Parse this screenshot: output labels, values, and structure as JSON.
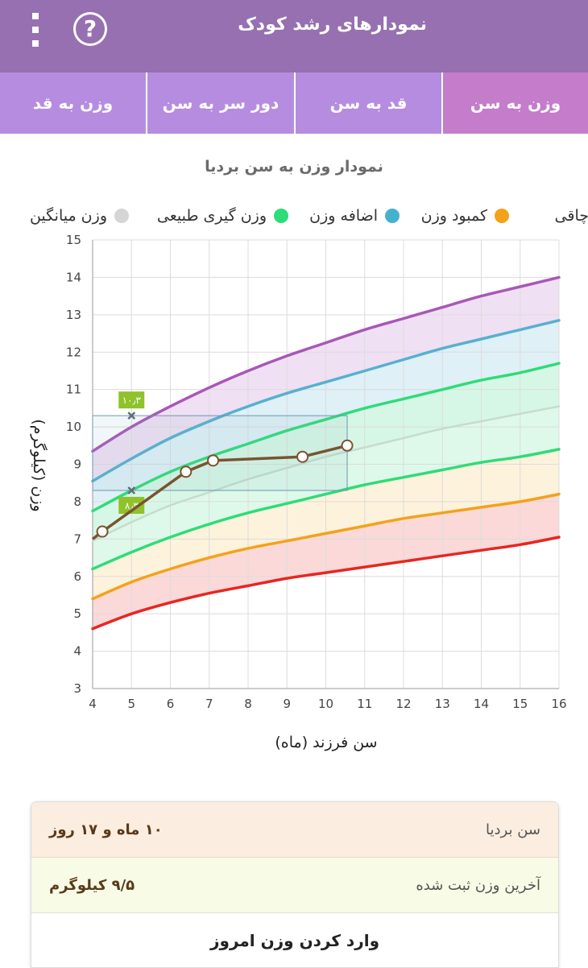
{
  "app_bar": {
    "title": "نمودارهای رشد کودک",
    "help_icon": "help-circle-icon",
    "menu_icon": "more-vert-icon"
  },
  "tabs": [
    {
      "label": "وزن به سن",
      "active": true
    },
    {
      "label": "قد به سن",
      "active": false
    },
    {
      "label": "دور سر به سن",
      "active": false
    },
    {
      "label": "وزن به قد",
      "active": false
    }
  ],
  "chart_data": {
    "type": "line",
    "title": "نمودار وزن به سن بردیا",
    "xlabel": "سن فرزند (ماه)",
    "ylabel": "وزن (کیلوگرم)",
    "xlim": [
      4,
      16
    ],
    "ylim": [
      3,
      15
    ],
    "x_ticks": [
      "4",
      "5",
      "6",
      "7",
      "8",
      "9",
      "10",
      "11",
      "12",
      "13",
      "14",
      "15",
      "16"
    ],
    "y_ticks": [
      "3",
      "4",
      "5",
      "6",
      "7",
      "8",
      "9",
      "10",
      "11",
      "12",
      "13",
      "14",
      "15"
    ],
    "grid": true,
    "legend_position": "top",
    "legend": [
      {
        "label": "چاقی",
        "color": "#a957b8"
      },
      {
        "label": "کمبود وزن",
        "color": "#f3a21a"
      },
      {
        "label": "اضافه وزن",
        "color": "#45b1cf"
      },
      {
        "label": "وزن گیری طبیعی",
        "color": "#2edc78"
      },
      {
        "label": "وزن میانگین",
        "color": "#d5d5d5"
      }
    ],
    "curves": [
      {
        "key": "obesity",
        "color": "#a957b8",
        "fill": "#f0e0f3",
        "points": [
          [
            4,
            9.35
          ],
          [
            5,
            10.0
          ],
          [
            6,
            10.55
          ],
          [
            7,
            11.05
          ],
          [
            8,
            11.5
          ],
          [
            9,
            11.9
          ],
          [
            10,
            12.25
          ],
          [
            11,
            12.6
          ],
          [
            12,
            12.9
          ],
          [
            13,
            13.2
          ],
          [
            14,
            13.5
          ],
          [
            15,
            13.75
          ],
          [
            16,
            14.0
          ]
        ]
      },
      {
        "key": "overweight",
        "color": "#57b0d0",
        "fill": "#dff0f6",
        "points": [
          [
            4,
            8.55
          ],
          [
            5,
            9.15
          ],
          [
            6,
            9.7
          ],
          [
            7,
            10.15
          ],
          [
            8,
            10.55
          ],
          [
            9,
            10.9
          ],
          [
            10,
            11.2
          ],
          [
            11,
            11.5
          ],
          [
            12,
            11.8
          ],
          [
            13,
            12.1
          ],
          [
            14,
            12.35
          ],
          [
            15,
            12.6
          ],
          [
            16,
            12.85
          ]
        ]
      },
      {
        "key": "normal_upper",
        "color": "#2edc78",
        "fill": "#d7f7e6",
        "points": [
          [
            4,
            7.75
          ],
          [
            5,
            8.3
          ],
          [
            6,
            8.8
          ],
          [
            7,
            9.2
          ],
          [
            8,
            9.55
          ],
          [
            9,
            9.9
          ],
          [
            10,
            10.2
          ],
          [
            11,
            10.5
          ],
          [
            12,
            10.75
          ],
          [
            13,
            11.0
          ],
          [
            14,
            11.25
          ],
          [
            15,
            11.45
          ],
          [
            16,
            11.7
          ]
        ]
      },
      {
        "key": "average",
        "color": "#c5dccc",
        "fill": "#def9ea",
        "points": [
          [
            4,
            6.95
          ],
          [
            5,
            7.45
          ],
          [
            6,
            7.9
          ],
          [
            7,
            8.25
          ],
          [
            8,
            8.6
          ],
          [
            9,
            8.9
          ],
          [
            10,
            9.2
          ],
          [
            11,
            9.45
          ],
          [
            12,
            9.7
          ],
          [
            13,
            9.95
          ],
          [
            14,
            10.15
          ],
          [
            15,
            10.35
          ],
          [
            16,
            10.55
          ]
        ]
      },
      {
        "key": "normal_lower",
        "color": "#2edc78",
        "fill": "#fdf2dc",
        "points": [
          [
            4,
            6.2
          ],
          [
            5,
            6.65
          ],
          [
            6,
            7.05
          ],
          [
            7,
            7.4
          ],
          [
            8,
            7.7
          ],
          [
            9,
            7.95
          ],
          [
            10,
            8.2
          ],
          [
            11,
            8.45
          ],
          [
            12,
            8.65
          ],
          [
            13,
            8.85
          ],
          [
            14,
            9.05
          ],
          [
            15,
            9.2
          ],
          [
            16,
            9.4
          ]
        ]
      },
      {
        "key": "underweight",
        "color": "#f3a21a",
        "fill": "#fbd9d9",
        "points": [
          [
            4,
            5.4
          ],
          [
            5,
            5.85
          ],
          [
            6,
            6.2
          ],
          [
            7,
            6.5
          ],
          [
            8,
            6.75
          ],
          [
            9,
            6.95
          ],
          [
            10,
            7.15
          ],
          [
            11,
            7.35
          ],
          [
            12,
            7.55
          ],
          [
            13,
            7.7
          ],
          [
            14,
            7.85
          ],
          [
            15,
            8.0
          ],
          [
            16,
            8.2
          ]
        ]
      },
      {
        "key": "severe_underweight",
        "color": "#e8261f",
        "fill": "none",
        "points": [
          [
            4,
            4.6
          ],
          [
            5,
            5.0
          ],
          [
            6,
            5.3
          ],
          [
            7,
            5.55
          ],
          [
            8,
            5.75
          ],
          [
            9,
            5.95
          ],
          [
            10,
            6.1
          ],
          [
            11,
            6.25
          ],
          [
            12,
            6.4
          ],
          [
            13,
            6.55
          ],
          [
            14,
            6.7
          ],
          [
            15,
            6.85
          ],
          [
            16,
            7.05
          ]
        ]
      }
    ],
    "child_series": {
      "color": "#7a5331",
      "points": [
        [
          4.25,
          7.2
        ],
        [
          6.4,
          8.8
        ],
        [
          7.1,
          9.1
        ],
        [
          9.4,
          9.2
        ],
        [
          10.55,
          9.5
        ]
      ],
      "line_start": [
        4.0,
        7.0
      ],
      "line_end": [
        10.55,
        9.5
      ]
    },
    "highlight_range": {
      "x": [
        4,
        10.55
      ],
      "y": [
        8.3,
        10.3
      ]
    },
    "markers": [
      {
        "x": 5,
        "y": 10.3,
        "label": "۱۰٫۳",
        "label_pos": "above"
      },
      {
        "x": 5,
        "y": 8.3,
        "label": "۸٫۳",
        "label_pos": "below"
      }
    ]
  },
  "info_card": {
    "age_label": "سن بردیا",
    "age_value": "۱۰ ماه و ۱۷ روز",
    "weight_label": "آخرین وزن ثبت شده",
    "weight_value": "۹/۵ کیلوگرم",
    "enter_weight_label": "وارد کردن وزن امروز"
  }
}
